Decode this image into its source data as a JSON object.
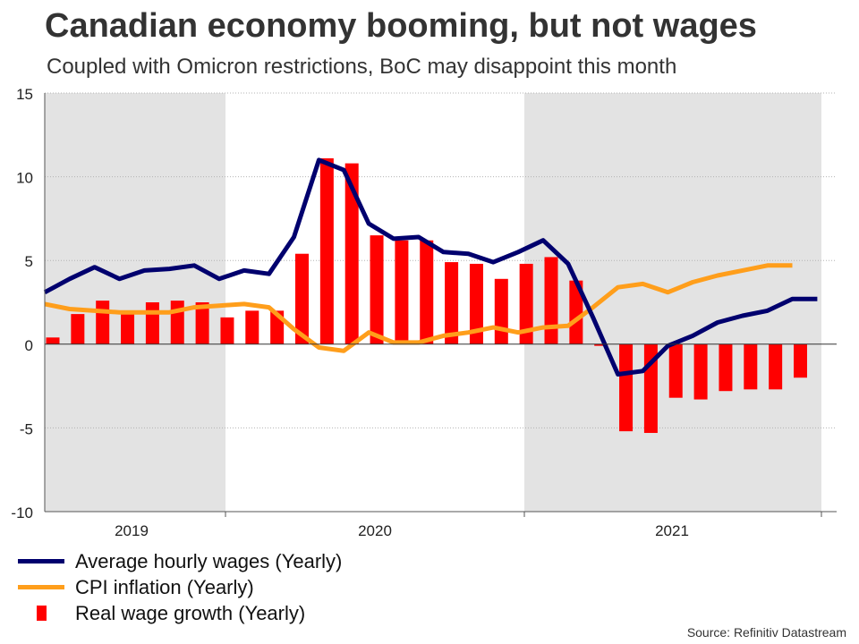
{
  "title": "Canadian economy booming, but not wages",
  "subtitle": "Coupled with Omicron restrictions, BoC may disappoint this month",
  "source": "Source: Refinitiv Datastream",
  "colors": {
    "wages": "#00006e",
    "cpi": "#ff9e1b",
    "real": "#ff0000",
    "shade": "#e3e3e3",
    "grid": "#b3b3b3"
  },
  "legend": [
    {
      "label": "Average hourly wages (Yearly)",
      "key": "wages"
    },
    {
      "label": "CPI inflation (Yearly)",
      "key": "cpi"
    },
    {
      "label": "Real wage growth (Yearly)",
      "key": "real"
    }
  ],
  "chart_data": {
    "type": "line",
    "y_ticks": [
      -10,
      -5,
      0,
      5,
      10,
      15
    ],
    "ylim": [
      -10,
      15
    ],
    "grid": "horizontal dotted",
    "legend_position": "bottom-left",
    "x_tick_labels": [
      {
        "label": "2019",
        "at_month": 3.5
      },
      {
        "label": "2020",
        "at_month": 15.5
      },
      {
        "label": "2021",
        "at_month": 27.5
      }
    ],
    "shaded_years": [
      "2019",
      "2021"
    ],
    "months": [
      "2019-01",
      "2019-02",
      "2019-03",
      "2019-04",
      "2019-05",
      "2019-06",
      "2019-07",
      "2019-08",
      "2019-09",
      "2019-10",
      "2019-11",
      "2019-12",
      "2020-01",
      "2020-02",
      "2020-03",
      "2020-04",
      "2020-05",
      "2020-06",
      "2020-07",
      "2020-08",
      "2020-09",
      "2020-10",
      "2020-11",
      "2020-12",
      "2021-01",
      "2021-02",
      "2021-03",
      "2021-04",
      "2021-05",
      "2021-06",
      "2021-07",
      "2021-08",
      "2021-09",
      "2021-10",
      "2021-11",
      "2021-12"
    ],
    "series": [
      {
        "name": "Average hourly wages (Yearly)",
        "key": "wages",
        "kind": "line",
        "values": [
          null,
          null,
          null,
          null,
          null,
          null,
          null,
          null,
          null,
          null,
          3.1,
          3.9,
          4.6,
          3.9,
          4.4,
          4.5,
          4.7,
          3.9,
          4.4,
          4.2,
          6.4,
          11.0,
          10.4,
          7.2,
          6.3,
          6.4,
          5.5,
          5.4,
          4.9,
          5.5,
          6.2,
          4.8,
          1.6,
          -1.8,
          -1.6,
          -0.1
        ]
      },
      {
        "name": "CPI inflation (Yearly)",
        "key": "cpi",
        "kind": "line",
        "values": [
          null,
          null,
          null,
          null,
          null,
          null,
          null,
          null,
          null,
          null,
          2.4,
          2.1,
          2.0,
          1.9,
          1.9,
          1.9,
          2.2,
          2.3,
          2.4,
          2.2,
          0.9,
          -0.2,
          -0.4,
          0.7,
          0.1,
          0.1,
          0.5,
          0.7,
          1.0,
          0.7,
          1.0,
          1.1,
          2.2,
          3.4,
          3.6,
          3.1
        ]
      },
      {
        "name": "Real wage growth (Yearly)",
        "key": "real",
        "kind": "bar",
        "values": [
          null,
          null,
          null,
          null,
          null,
          null,
          null,
          null,
          null,
          null,
          0.4,
          1.8,
          2.6,
          1.9,
          2.5,
          2.6,
          2.5,
          1.6,
          2.0,
          2.0,
          5.4,
          11.1,
          10.8,
          6.5,
          6.2,
          6.2,
          4.9,
          4.8,
          3.9,
          4.8,
          5.2,
          3.8,
          -0.1,
          -5.2,
          -5.3,
          -3.2
        ]
      }
    ],
    "extension_2021": {
      "months": [
        "2021-04",
        "2021-05",
        "2021-06",
        "2021-07",
        "2021-08",
        "2021-09",
        "2021-10",
        "2021-11"
      ],
      "wages": [
        0.5,
        1.3,
        1.7,
        2.0,
        2.7,
        2.7,
        null,
        null
      ],
      "cpi": [
        3.7,
        4.1,
        4.4,
        4.7,
        4.7,
        null,
        null,
        null
      ],
      "real": [
        -3.3,
        -2.8,
        -2.7,
        -2.7,
        -2.0,
        null,
        null,
        null
      ]
    }
  }
}
